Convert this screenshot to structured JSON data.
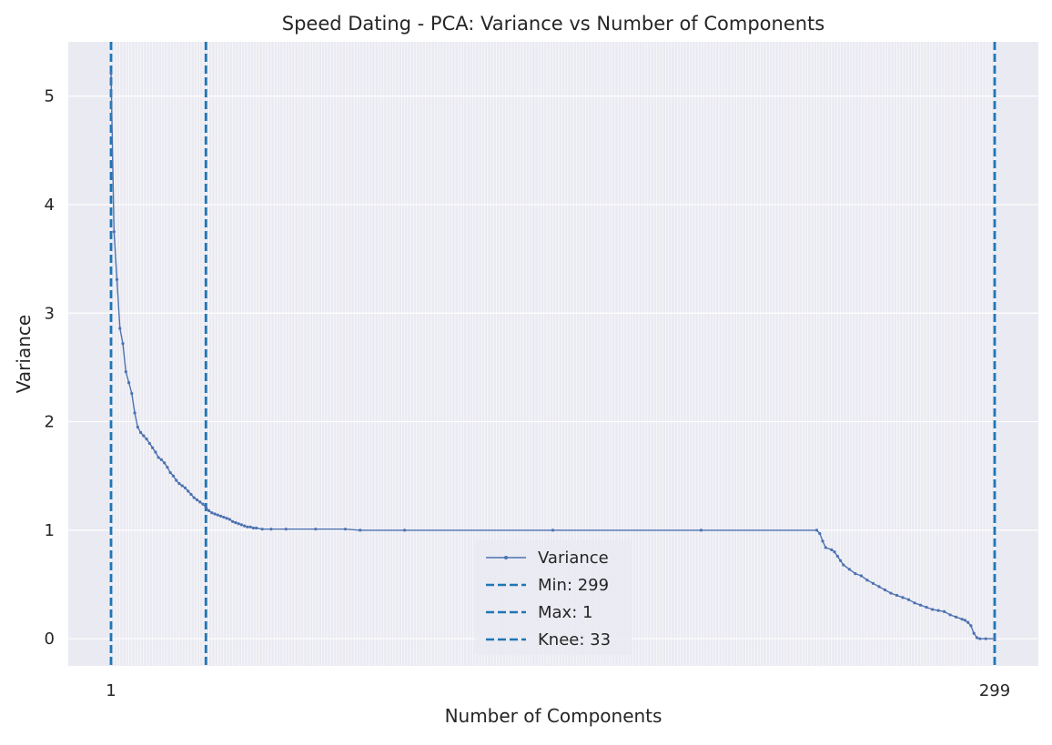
{
  "chart_data": {
    "type": "line",
    "title": "Speed Dating - PCA: Variance vs Number of Components",
    "xlabel": "Number of Components",
    "ylabel": "Variance",
    "x_range": [
      1,
      299
    ],
    "ylim": [
      -0.25,
      5.5
    ],
    "yticks": [
      0,
      1,
      2,
      3,
      4,
      5
    ],
    "x_tick_labels_legible": [
      "1",
      "299"
    ],
    "x_ticks_every_component": true,
    "grid": true,
    "legend_placement": "lower-center",
    "colors": {
      "background": "#eaeaf2",
      "grid": "#ffffff",
      "series": "#4c72b0",
      "vlines": "#1f77b4"
    },
    "series": [
      {
        "name": "Variance",
        "style": "line-with-point-markers",
        "points": [
          [
            1,
            5.21
          ],
          [
            2,
            3.75
          ],
          [
            3,
            3.31
          ],
          [
            4,
            2.86
          ],
          [
            5,
            2.72
          ],
          [
            6,
            2.46
          ],
          [
            7,
            2.36
          ],
          [
            8,
            2.26
          ],
          [
            9,
            2.08
          ],
          [
            10,
            1.95
          ],
          [
            11,
            1.9
          ],
          [
            12,
            1.87
          ],
          [
            13,
            1.84
          ],
          [
            14,
            1.8
          ],
          [
            15,
            1.76
          ],
          [
            16,
            1.72
          ],
          [
            17,
            1.67
          ],
          [
            18,
            1.65
          ],
          [
            19,
            1.62
          ],
          [
            20,
            1.58
          ],
          [
            21,
            1.53
          ],
          [
            22,
            1.5
          ],
          [
            23,
            1.46
          ],
          [
            24,
            1.43
          ],
          [
            25,
            1.41
          ],
          [
            26,
            1.39
          ],
          [
            27,
            1.36
          ],
          [
            28,
            1.33
          ],
          [
            29,
            1.3
          ],
          [
            30,
            1.28
          ],
          [
            31,
            1.26
          ],
          [
            32,
            1.24
          ],
          [
            33,
            1.21
          ],
          [
            34,
            1.18
          ],
          [
            35,
            1.16
          ],
          [
            36,
            1.15
          ],
          [
            37,
            1.14
          ],
          [
            38,
            1.13
          ],
          [
            39,
            1.12
          ],
          [
            40,
            1.11
          ],
          [
            41,
            1.1
          ],
          [
            42,
            1.08
          ],
          [
            43,
            1.07
          ],
          [
            44,
            1.06
          ],
          [
            45,
            1.05
          ],
          [
            46,
            1.04
          ],
          [
            47,
            1.03
          ],
          [
            48,
            1.03
          ],
          [
            49,
            1.02
          ],
          [
            50,
            1.02
          ],
          [
            52,
            1.01
          ],
          [
            55,
            1.01
          ],
          [
            60,
            1.01
          ],
          [
            70,
            1.01
          ],
          [
            80,
            1.01
          ],
          [
            85,
            1.0
          ],
          [
            100,
            1.0
          ],
          [
            150,
            1.0
          ],
          [
            200,
            1.0
          ],
          [
            239,
            1.0
          ],
          [
            240,
            0.97
          ],
          [
            241,
            0.9
          ],
          [
            242,
            0.84
          ],
          [
            244,
            0.82
          ],
          [
            245,
            0.8
          ],
          [
            246,
            0.76
          ],
          [
            247,
            0.72
          ],
          [
            248,
            0.68
          ],
          [
            250,
            0.64
          ],
          [
            252,
            0.6
          ],
          [
            254,
            0.58
          ],
          [
            256,
            0.54
          ],
          [
            258,
            0.51
          ],
          [
            260,
            0.48
          ],
          [
            262,
            0.45
          ],
          [
            264,
            0.42
          ],
          [
            266,
            0.4
          ],
          [
            268,
            0.38
          ],
          [
            270,
            0.36
          ],
          [
            272,
            0.33
          ],
          [
            274,
            0.31
          ],
          [
            276,
            0.29
          ],
          [
            278,
            0.27
          ],
          [
            280,
            0.26
          ],
          [
            282,
            0.25
          ],
          [
            284,
            0.22
          ],
          [
            286,
            0.2
          ],
          [
            288,
            0.18
          ],
          [
            289,
            0.17
          ],
          [
            290,
            0.15
          ],
          [
            291,
            0.12
          ],
          [
            292,
            0.05
          ],
          [
            293,
            0.01
          ],
          [
            294,
            0.0
          ],
          [
            296,
            0.0
          ],
          [
            299,
            0.0
          ]
        ]
      }
    ],
    "vlines": [
      {
        "name": "Min: 299",
        "x": 299
      },
      {
        "name": "Max: 1",
        "x": 1
      },
      {
        "name": "Knee: 33",
        "x": 33
      }
    ]
  }
}
